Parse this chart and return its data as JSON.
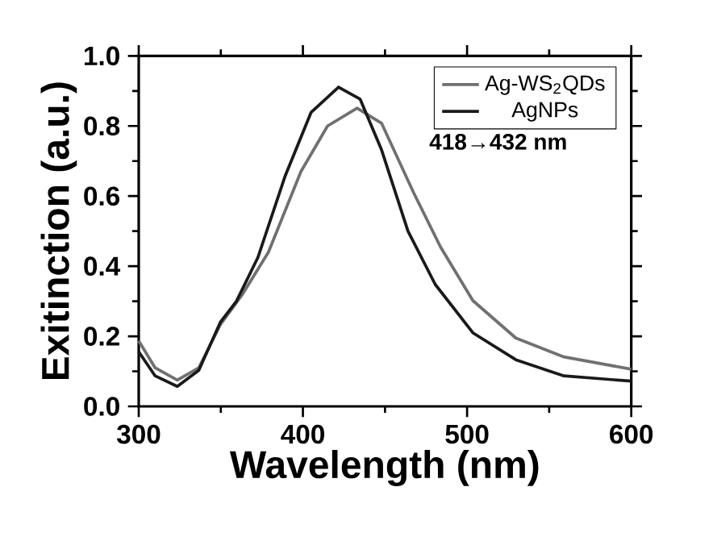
{
  "chart_data": {
    "type": "line",
    "xlabel": "Wavelength (nm)",
    "ylabel": "Exitinction (a.u.)",
    "annotations": [
      "418→432 nm"
    ],
    "xlim": [
      300,
      600
    ],
    "ylim": [
      0,
      1.0
    ],
    "xticks": [
      300,
      {
        "value": 350,
        "label": null
      },
      400,
      {
        "value": 450,
        "label": null
      },
      500,
      {
        "value": 550,
        "label": null
      },
      600
    ],
    "yticks": [
      {
        "value": 0,
        "label": "0.0"
      },
      {
        "value": 0.1,
        "label": null
      },
      {
        "value": 0.2,
        "label": "0.2"
      },
      {
        "value": 0.3,
        "label": null
      },
      {
        "value": 0.4,
        "label": "0.4"
      },
      {
        "value": 0.5,
        "label": null
      },
      {
        "value": 0.6,
        "label": "0.6"
      },
      {
        "value": 0.7,
        "label": null
      },
      {
        "value": 0.8,
        "label": "0.8"
      },
      {
        "value": 0.9,
        "label": null
      },
      {
        "value": 1.0,
        "label": "1.0"
      }
    ],
    "legend": "right",
    "grid": false,
    "marker": "none",
    "line_style": "solid",
    "series": [
      {
        "name": "Ag-WS$_{2}$QDs",
        "color": "#707070",
        "x": [
          300,
          310,
          323.5,
          336.6,
          349.7,
          362.8,
          379,
          398.8,
          415,
          433,
          447.9,
          467.5,
          483.8,
          503.5,
          529.7,
          559,
          600
        ],
        "values": [
          0.187,
          0.11,
          0.075,
          0.11,
          0.233,
          0.317,
          0.44,
          0.67,
          0.8,
          0.851,
          0.808,
          0.609,
          0.455,
          0.302,
          0.195,
          0.141,
          0.106
        ]
      },
      {
        "name": "AgNPs",
        "color": "#1a1a1a",
        "x": [
          300,
          310,
          323.5,
          336.6,
          349.7,
          359.5,
          372.6,
          389,
          405,
          421.7,
          434.8,
          447.9,
          464,
          480.6,
          503.5,
          529.7,
          559,
          600
        ],
        "values": [
          0.156,
          0.087,
          0.057,
          0.103,
          0.24,
          0.3,
          0.425,
          0.655,
          0.839,
          0.911,
          0.877,
          0.732,
          0.5,
          0.348,
          0.21,
          0.133,
          0.087,
          0.072
        ]
      }
    ]
  }
}
